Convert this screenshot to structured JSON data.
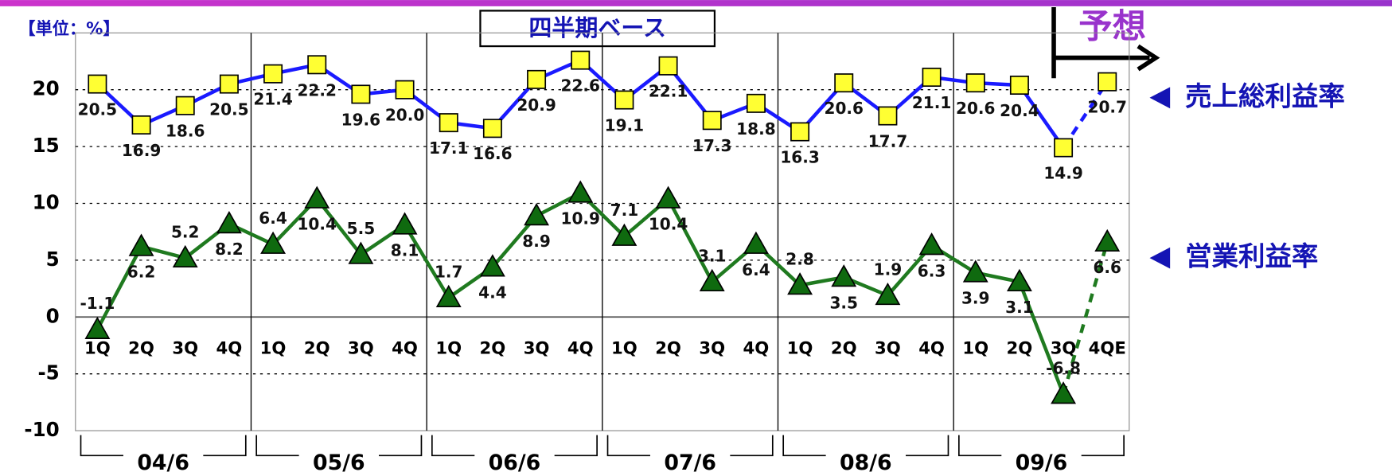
{
  "chart_data": {
    "type": "line",
    "title": "四半期ベース",
    "unit_label": "【単位：%】",
    "categories": [
      "1Q",
      "2Q",
      "3Q",
      "4Q",
      "1Q",
      "2Q",
      "3Q",
      "4Q",
      "1Q",
      "2Q",
      "3Q",
      "4Q",
      "1Q",
      "2Q",
      "3Q",
      "4Q",
      "1Q",
      "2Q",
      "3Q",
      "4Q",
      "1Q",
      "2Q",
      "3Q",
      "4QE"
    ],
    "groups": [
      "04/6",
      "05/6",
      "06/6",
      "07/6",
      "08/6",
      "09/6"
    ],
    "forecast": {
      "label": "予想",
      "from_category": "4QE"
    },
    "series": [
      {
        "name": "売上総利益率",
        "color": "#1a1aff",
        "marker": "square",
        "marker_color": "#ffff33",
        "values": [
          20.5,
          16.9,
          18.6,
          20.5,
          21.4,
          22.2,
          19.6,
          20.0,
          17.1,
          16.6,
          20.9,
          22.6,
          19.1,
          22.1,
          17.3,
          18.8,
          16.3,
          20.6,
          17.7,
          21.1,
          20.6,
          20.4,
          14.9,
          20.7
        ],
        "value_labels": [
          "20.5",
          "16.9",
          "18.6",
          "20.5",
          "21.4",
          "22.2",
          "19.6",
          "20.0",
          "17.1",
          "16.6",
          "20.9",
          "22.6",
          "19.1",
          "22.1",
          "17.3",
          "18.8",
          "16.3",
          "20.6",
          "17.7",
          "21.1",
          "20.6",
          "20.4",
          "14.9",
          "20.7"
        ]
      },
      {
        "name": "営業利益率",
        "color": "#1f7a1f",
        "marker": "triangle",
        "marker_color": "#0f6a0f",
        "values": [
          -1.1,
          6.2,
          5.2,
          8.2,
          6.4,
          10.4,
          5.5,
          8.1,
          1.7,
          4.4,
          8.9,
          10.9,
          7.1,
          10.4,
          3.1,
          6.4,
          2.8,
          3.5,
          1.9,
          6.3,
          3.9,
          3.1,
          -6.8,
          6.6
        ],
        "value_labels": [
          "-1.1",
          "6.2",
          "5.2",
          "8.2",
          "6.4",
          "10.4",
          "5.5",
          "8.1",
          "1.7",
          "4.4",
          "8.9",
          "10.9",
          "7.1",
          "10.4",
          "3.1",
          "6.4",
          "2.8",
          "3.5",
          "1.9",
          "6.3",
          "3.9",
          "3.1",
          "-6.8",
          "6.6"
        ]
      }
    ],
    "ylim": [
      -10,
      25
    ],
    "yticks": [
      -10,
      -5,
      0,
      5,
      10,
      15,
      20
    ],
    "grid": true
  }
}
